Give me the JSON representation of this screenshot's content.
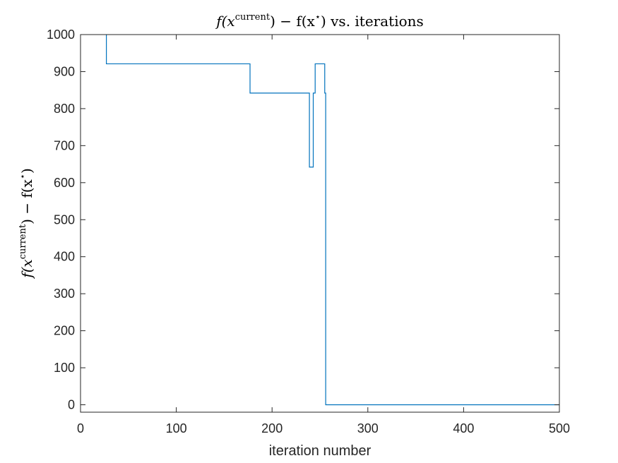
{
  "chart_data": {
    "type": "line",
    "title": {
      "pre": "f(x",
      "sup1": "current",
      "mid": ") − f(x",
      "sup2": "⋆",
      "post": ") vs. iterations"
    },
    "xlabel": "iteration number",
    "ylabel": {
      "pre": "f(x",
      "sup1": "current",
      "mid": ") − f(x",
      "sup2": "⋆",
      "post": ")"
    },
    "xlim": [
      0,
      500
    ],
    "ylim": [
      -20,
      1000
    ],
    "xticks": [
      0,
      100,
      200,
      300,
      400,
      500
    ],
    "yticks": [
      0,
      100,
      200,
      300,
      400,
      500,
      600,
      700,
      800,
      900,
      1000
    ],
    "grid": false,
    "series": [
      {
        "color": "#0072BD",
        "x": [
          27,
          27,
          177,
          177,
          239,
          239,
          243,
          243,
          245,
          245,
          255,
          255,
          256,
          256,
          500
        ],
        "y": [
          1000,
          921,
          921,
          842,
          842,
          642,
          642,
          842,
          842,
          921,
          921,
          842,
          842,
          0,
          0
        ]
      }
    ]
  }
}
